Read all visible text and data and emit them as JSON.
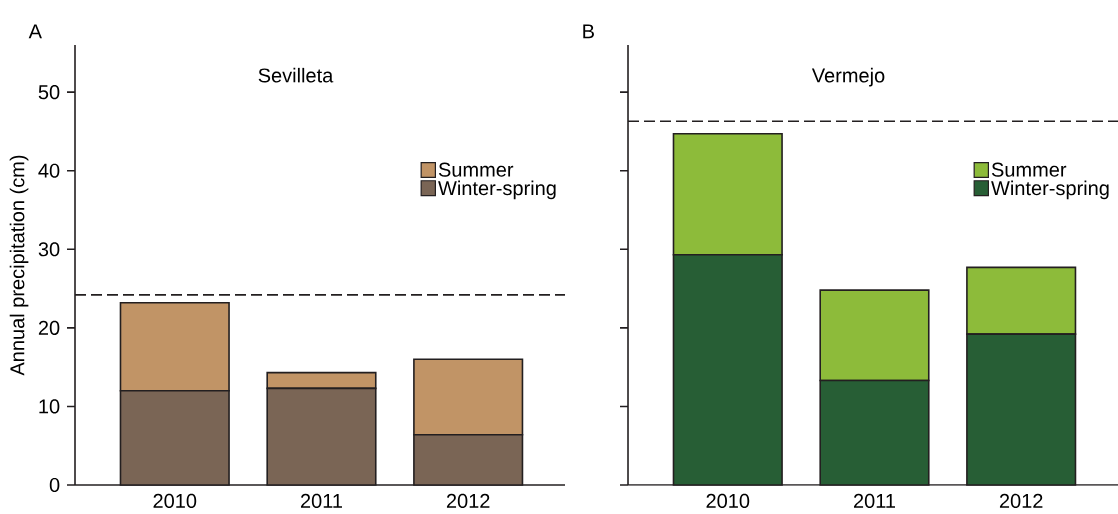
{
  "chart_data": [
    {
      "type": "bar",
      "title": "Sevilleta",
      "ylabel": "Annual  precipitation (cm)",
      "annotations": [
        "A"
      ],
      "categories": [
        "2010",
        "2011",
        "2012"
      ],
      "stacked": true,
      "series": [
        {
          "name": "Winter-spring",
          "color": "#7a6555",
          "values": [
            12.0,
            12.3,
            6.4
          ]
        },
        {
          "name": "Summer",
          "color": "#c19466",
          "values": [
            11.2,
            2.0,
            9.6
          ]
        }
      ],
      "ylim": [
        0,
        56
      ],
      "yticks": [
        0,
        10,
        20,
        30,
        40,
        50
      ],
      "legend": "right",
      "ref_lines": [
        {
          "axis": "y",
          "value": 24.2,
          "line_style": "dashed",
          "color": "#231f20"
        }
      ]
    },
    {
      "type": "bar",
      "title": "Vermejo",
      "annotations": [
        "B"
      ],
      "categories": [
        "2010",
        "2011",
        "2012"
      ],
      "stacked": true,
      "series": [
        {
          "name": "Winter-spring",
          "color": "#275e35",
          "values": [
            29.3,
            13.3,
            19.2
          ]
        },
        {
          "name": "Summer",
          "color": "#8dbb3a",
          "values": [
            15.4,
            11.5,
            8.5
          ]
        }
      ],
      "ylim": [
        0,
        56
      ],
      "yticks": [
        0,
        10,
        20,
        30,
        40,
        50
      ],
      "tick_labels": "x",
      "legend": "right",
      "ref_lines": [
        {
          "axis": "y",
          "value": 46.3,
          "line_style": "dashed",
          "color": "#231f20"
        }
      ]
    }
  ]
}
